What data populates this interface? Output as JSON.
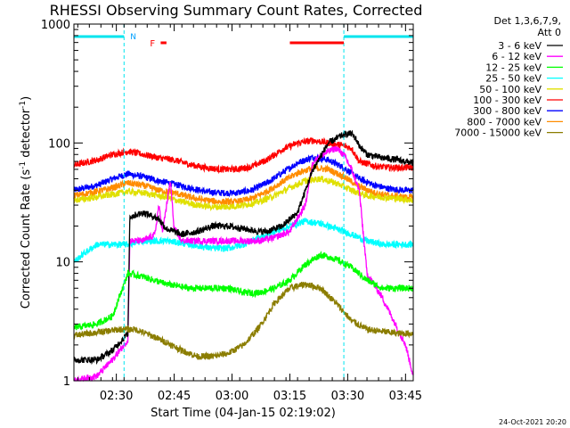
{
  "chart_data": {
    "type": "line",
    "title": "RHESSI Observing Summary Count Rates, Corrected",
    "xlabel": "Start Time (04-Jan-15 02:19:02)",
    "ylabel_main": "Corrected Count Rate (s",
    "ylabel_sup1": "-1",
    "ylabel_mid": " detector",
    "ylabel_sup2": "-1",
    "ylabel_end": ")",
    "yscale": "log",
    "ylim": [
      1,
      1000
    ],
    "xlim_minutes": [
      0,
      88
    ],
    "x_ticks": [
      {
        "label": "02:30",
        "m": 11
      },
      {
        "label": "02:45",
        "m": 26
      },
      {
        "label": "03:00",
        "m": 41
      },
      {
        "label": "03:15",
        "m": 56
      },
      {
        "label": "03:30",
        "m": 71
      },
      {
        "label": "03:45",
        "m": 86
      }
    ],
    "y_ticks": [
      {
        "label": "1",
        "v": 1
      },
      {
        "label": "10",
        "v": 10
      },
      {
        "label": "100",
        "v": 100
      },
      {
        "label": "1000",
        "v": 1000
      }
    ],
    "legend": {
      "header1": "Det 1,3,6,7,9,",
      "header2": "Att 0",
      "placement": "right"
    },
    "series": [
      {
        "name": "3 - 6 keV",
        "color": "#000000",
        "x": [
          0,
          6,
          10,
          14,
          14.5,
          18,
          22,
          24,
          28,
          32,
          36,
          40,
          44,
          48,
          50,
          54,
          58,
          62,
          66,
          70,
          72,
          73,
          74,
          76,
          80,
          84,
          86,
          88
        ],
        "y": [
          1.5,
          1.5,
          1.8,
          2.5,
          24,
          26,
          23,
          19,
          17,
          18,
          20,
          20,
          19,
          18,
          18,
          20,
          26,
          60,
          100,
          118,
          120,
          110,
          95,
          80,
          75,
          72,
          70,
          68
        ]
      },
      {
        "name": "6 - 12 keV",
        "color": "#ff00ff",
        "x": [
          0,
          6,
          10,
          14,
          14.5,
          18,
          21,
          22,
          23,
          25,
          26,
          28,
          32,
          36,
          40,
          44,
          48,
          52,
          56,
          60,
          62,
          66,
          68,
          70,
          72,
          74,
          76,
          80,
          86,
          88
        ],
        "y": [
          1.0,
          1.1,
          1.5,
          2.2,
          15,
          15,
          17,
          30,
          18,
          48,
          19,
          15,
          15,
          15,
          15,
          15,
          15,
          16,
          18,
          30,
          70,
          85,
          90,
          80,
          60,
          40,
          8,
          5,
          2,
          1.1
        ]
      },
      {
        "name": "12 - 25 keV",
        "color": "#00ff00",
        "x": [
          0,
          6,
          10,
          14,
          18,
          24,
          30,
          36,
          40,
          44,
          48,
          52,
          56,
          60,
          64,
          68,
          72,
          76,
          80,
          84,
          88
        ],
        "y": [
          2.8,
          3.0,
          3.5,
          8.0,
          7.5,
          6.5,
          6.0,
          6.0,
          6.0,
          5.5,
          5.5,
          6.0,
          7.0,
          9.5,
          11.5,
          10.5,
          9.0,
          7.0,
          6.0,
          6.0,
          6.0
        ]
      },
      {
        "name": "25 - 50 keV",
        "color": "#00ffff",
        "x": [
          0,
          3,
          6,
          10,
          14,
          18,
          24,
          30,
          36,
          40,
          44,
          48,
          52,
          56,
          60,
          64,
          68,
          72,
          76,
          80,
          84,
          88
        ],
        "y": [
          10,
          12,
          14,
          14,
          14,
          15,
          15,
          14,
          13,
          13,
          14,
          16,
          18,
          20,
          22,
          21,
          19,
          17,
          15,
          14,
          14,
          14
        ]
      },
      {
        "name": "50 - 100 keV",
        "color": "#e0e000",
        "x": [
          0,
          6,
          10,
          14,
          18,
          24,
          28,
          32,
          36,
          40,
          44,
          48,
          52,
          56,
          60,
          64,
          68,
          72,
          76,
          80,
          84,
          88
        ],
        "y": [
          33,
          35,
          37,
          39,
          38,
          35,
          32,
          30,
          29,
          29,
          30,
          32,
          36,
          42,
          48,
          50,
          46,
          40,
          36,
          35,
          34,
          33
        ]
      },
      {
        "name": "100 - 300 keV",
        "color": "#ff0000",
        "x": [
          0,
          6,
          10,
          14,
          18,
          22,
          26,
          30,
          34,
          38,
          42,
          46,
          50,
          54,
          58,
          62,
          66,
          70,
          72,
          74,
          78,
          82,
          86,
          88
        ],
        "y": [
          65,
          72,
          80,
          85,
          80,
          75,
          72,
          66,
          62,
          60,
          60,
          63,
          72,
          88,
          100,
          105,
          100,
          95,
          90,
          70,
          64,
          62,
          62,
          62
        ]
      },
      {
        "name": "300 - 800 keV",
        "color": "#0000ff",
        "x": [
          0,
          6,
          10,
          14,
          18,
          22,
          26,
          30,
          34,
          38,
          42,
          46,
          50,
          54,
          58,
          62,
          66,
          70,
          74,
          78,
          82,
          86,
          88
        ],
        "y": [
          40,
          44,
          50,
          55,
          52,
          48,
          45,
          42,
          39,
          38,
          38,
          40,
          46,
          56,
          68,
          76,
          72,
          62,
          50,
          44,
          41,
          40,
          40
        ]
      },
      {
        "name": "800 - 7000 keV",
        "color": "#ff8c00",
        "x": [
          0,
          6,
          10,
          14,
          18,
          22,
          26,
          30,
          34,
          38,
          42,
          46,
          50,
          54,
          58,
          62,
          66,
          70,
          74,
          78,
          82,
          86,
          88
        ],
        "y": [
          36,
          39,
          42,
          46,
          44,
          40,
          38,
          35,
          33,
          32,
          32,
          34,
          39,
          47,
          56,
          62,
          60,
          52,
          43,
          38,
          36,
          35,
          35
        ]
      },
      {
        "name": "7000 - 15000 keV",
        "color": "#8b7d00",
        "x": [
          0,
          4,
          8,
          12,
          16,
          20,
          24,
          28,
          32,
          36,
          40,
          44,
          48,
          52,
          56,
          60,
          64,
          68,
          72,
          76,
          80,
          84,
          88
        ],
        "y": [
          2.4,
          2.5,
          2.6,
          2.7,
          2.7,
          2.4,
          2.1,
          1.8,
          1.6,
          1.6,
          1.7,
          2.0,
          2.8,
          4.5,
          6.0,
          6.5,
          6.0,
          4.5,
          3.2,
          2.7,
          2.6,
          2.5,
          2.5
        ]
      }
    ],
    "annotations": {
      "night_label": "N",
      "night_bars": [
        [
          0,
          13
        ],
        [
          70,
          88
        ]
      ],
      "night_vlines": [
        13,
        70,
        88
      ],
      "flare_label": "F",
      "flare_bars": [
        [
          22.5,
          24
        ],
        [
          56,
          70
        ]
      ]
    },
    "timestamp": "24-Oct-2021 20:20"
  }
}
